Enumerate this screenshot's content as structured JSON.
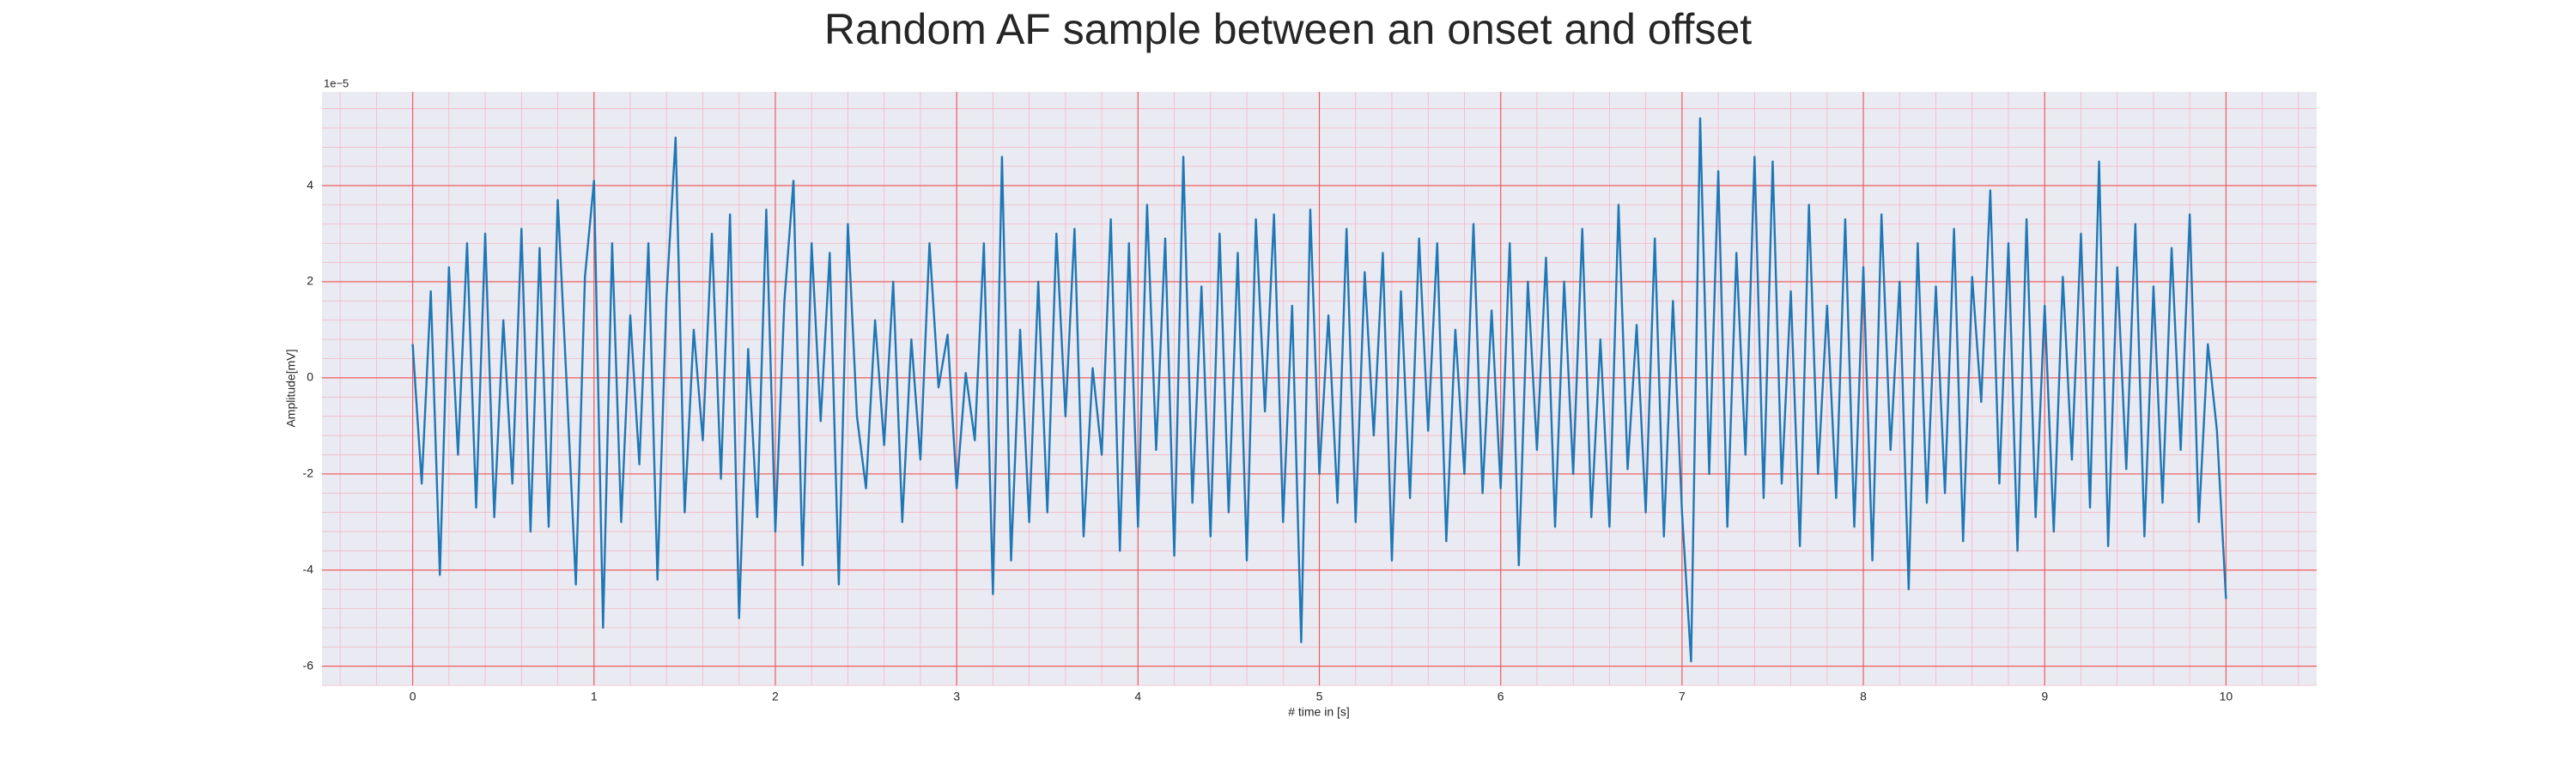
{
  "chart_data": {
    "type": "line",
    "title": "Random AF sample between an onset and offset",
    "x_label": "# time in [s]",
    "y_label": "Amplitude[mV]",
    "y_offset_label": "1e−5",
    "color": "#1f77b4",
    "grid": true,
    "minor_grid": true,
    "xlim": [
      -0.5,
      10.5
    ],
    "ylim": [
      -6.4,
      5.95
    ],
    "xticks": [
      0,
      1,
      2,
      3,
      4,
      5,
      6,
      7,
      8,
      9,
      10
    ],
    "yticks": [
      -6,
      -4,
      -2,
      0,
      2,
      4
    ],
    "x": [
      0,
      0.05,
      0.1,
      0.15,
      0.2,
      0.25,
      0.3,
      0.35,
      0.4,
      0.45,
      0.5,
      0.55,
      0.6,
      0.65,
      0.7,
      0.75,
      0.8,
      0.85,
      0.9,
      0.95,
      1,
      1.05,
      1.1,
      1.15,
      1.2,
      1.25,
      1.3,
      1.35,
      1.4,
      1.45,
      1.5,
      1.55,
      1.6,
      1.65,
      1.7,
      1.75,
      1.8,
      1.85,
      1.9,
      1.95,
      2,
      2.05,
      2.1,
      2.15,
      2.2,
      2.25,
      2.3,
      2.35,
      2.4,
      2.45,
      2.5,
      2.55,
      2.6,
      2.65,
      2.7,
      2.75,
      2.8,
      2.85,
      2.9,
      2.95,
      3,
      3.05,
      3.1,
      3.15,
      3.2,
      3.25,
      3.3,
      3.35,
      3.4,
      3.45,
      3.5,
      3.55,
      3.6,
      3.65,
      3.7,
      3.75,
      3.8,
      3.85,
      3.9,
      3.95,
      4,
      4.05,
      4.1,
      4.15,
      4.2,
      4.25,
      4.3,
      4.35,
      4.4,
      4.45,
      4.5,
      4.55,
      4.6,
      4.65,
      4.7,
      4.75,
      4.8,
      4.85,
      4.9,
      4.95,
      5,
      5.05,
      5.1,
      5.15,
      5.2,
      5.25,
      5.3,
      5.35,
      5.4,
      5.45,
      5.5,
      5.55,
      5.6,
      5.65,
      5.7,
      5.75,
      5.8,
      5.85,
      5.9,
      5.95,
      6,
      6.05,
      6.1,
      6.15,
      6.2,
      6.25,
      6.3,
      6.35,
      6.4,
      6.45,
      6.5,
      6.55,
      6.6,
      6.65,
      6.7,
      6.75,
      6.8,
      6.85,
      6.9,
      6.95,
      7,
      7.05,
      7.1,
      7.15,
      7.2,
      7.25,
      7.3,
      7.35,
      7.4,
      7.45,
      7.5,
      7.55,
      7.6,
      7.65,
      7.7,
      7.75,
      7.8,
      7.85,
      7.9,
      7.95,
      8,
      8.05,
      8.1,
      8.15,
      8.2,
      8.25,
      8.3,
      8.35,
      8.4,
      8.45,
      8.5,
      8.55,
      8.6,
      8.65,
      8.7,
      8.75,
      8.8,
      8.85,
      8.9,
      8.95,
      9,
      9.05,
      9.1,
      9.15,
      9.2,
      9.25,
      9.3,
      9.35,
      9.4,
      9.45,
      9.5,
      9.55,
      9.6,
      9.65,
      9.7,
      9.75,
      9.8,
      9.85,
      9.9,
      9.95,
      10
    ],
    "values": [
      0.7,
      -2.2,
      1.8,
      -4.1,
      2.3,
      -1.6,
      2.8,
      -2.7,
      3.0,
      -2.9,
      1.2,
      -2.2,
      3.1,
      -3.2,
      2.7,
      -3.1,
      3.7,
      -0.2,
      -4.3,
      2.1,
      4.1,
      -5.2,
      2.8,
      -3.0,
      1.3,
      -1.8,
      2.8,
      -4.2,
      1.7,
      5.0,
      -2.8,
      1.0,
      -1.3,
      3.0,
      -2.1,
      3.4,
      -5.0,
      0.6,
      -2.9,
      3.5,
      -3.2,
      1.6,
      4.1,
      -3.9,
      2.8,
      -0.9,
      2.6,
      -4.3,
      3.2,
      -0.8,
      -2.3,
      1.2,
      -1.4,
      2.0,
      -3.0,
      0.8,
      -1.7,
      2.8,
      -0.2,
      0.9,
      -2.3,
      0.1,
      -1.3,
      2.8,
      -4.5,
      4.6,
      -3.8,
      1.0,
      -3.0,
      2.0,
      -2.8,
      3.0,
      -0.8,
      3.1,
      -3.3,
      0.2,
      -1.6,
      3.3,
      -3.6,
      2.8,
      -3.1,
      3.6,
      -1.5,
      2.9,
      -3.7,
      4.6,
      -2.6,
      1.9,
      -3.3,
      3.0,
      -2.8,
      2.6,
      -3.8,
      3.3,
      -0.7,
      3.4,
      -3.0,
      1.5,
      -5.5,
      3.5,
      -2.0,
      1.3,
      -2.6,
      3.1,
      -3.0,
      2.2,
      -1.2,
      2.6,
      -3.8,
      1.8,
      -2.5,
      2.9,
      -1.1,
      2.8,
      -3.4,
      1.0,
      -2.0,
      3.2,
      -2.4,
      1.4,
      -2.3,
      2.8,
      -3.9,
      2.0,
      -1.5,
      2.5,
      -3.1,
      2.0,
      -2.0,
      3.1,
      -2.9,
      0.8,
      -3.1,
      3.6,
      -1.9,
      1.1,
      -2.8,
      2.9,
      -3.3,
      1.6,
      -2.8,
      -5.9,
      5.4,
      -2.0,
      4.3,
      -3.1,
      2.6,
      -1.6,
      4.6,
      -2.5,
      4.5,
      -2.2,
      1.8,
      -3.5,
      3.6,
      -2.0,
      1.5,
      -2.5,
      3.3,
      -3.1,
      2.3,
      -3.8,
      3.4,
      -1.5,
      2.0,
      -4.4,
      2.8,
      -2.6,
      1.9,
      -2.4,
      3.1,
      -3.4,
      2.1,
      -0.5,
      3.9,
      -2.2,
      2.8,
      -3.6,
      3.3,
      -2.9,
      1.5,
      -3.2,
      2.1,
      -1.7,
      3.0,
      -2.7,
      4.5,
      -3.5,
      2.3,
      -1.9,
      3.2,
      -3.3,
      1.9,
      -2.6,
      2.7,
      -1.5,
      3.4,
      -3.0,
      0.7,
      -1.1,
      -4.6
    ]
  }
}
